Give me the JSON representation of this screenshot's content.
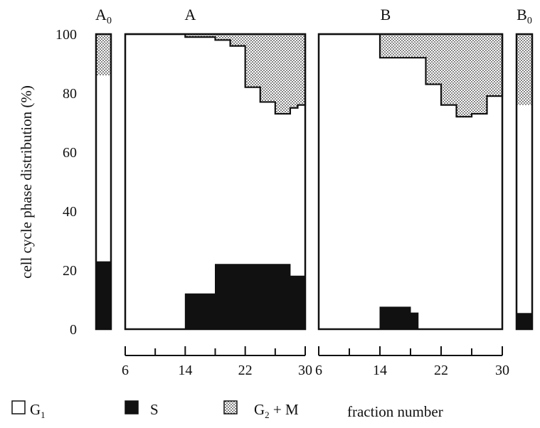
{
  "chart_data": {
    "type": "area",
    "ylabel": "cell cycle phase distribution (%)",
    "xlabel": "fraction number",
    "ylim": [
      0,
      100
    ],
    "yticks": [
      "100",
      "80",
      "60",
      "40",
      "20",
      "0"
    ],
    "phases": [
      {
        "key": "G1",
        "base": "G",
        "sub": "1",
        "rest": "",
        "fill": "white"
      },
      {
        "key": "S",
        "base": "S",
        "sub": "",
        "rest": "",
        "fill": "black"
      },
      {
        "key": "G2M",
        "base": "G",
        "sub": "2",
        "rest": " + M",
        "fill": "dotted"
      }
    ],
    "controls": [
      {
        "label": "A",
        "sub": "0",
        "S": 23,
        "G1": 63,
        "G2M": 14
      },
      {
        "label": "B",
        "sub": "0",
        "S": 5.5,
        "G1": 70.5,
        "G2M": 24
      }
    ],
    "panels": [
      {
        "label": "A",
        "xticks": [
          "6",
          "14",
          "22",
          "30"
        ],
        "x_range": [
          6,
          30
        ],
        "S": {
          "x": [
            6,
            14,
            18,
            26,
            28,
            30
          ],
          "values": [
            0,
            12,
            22,
            22,
            18,
            18
          ]
        },
        "G2M": {
          "x": [
            6,
            14,
            18,
            20,
            22,
            24,
            26,
            28,
            29,
            30
          ],
          "values": [
            0,
            1,
            2,
            4,
            18,
            23,
            27,
            25,
            24,
            24
          ]
        }
      },
      {
        "label": "B",
        "xticks": [
          "6",
          "14",
          "22",
          "30"
        ],
        "x_range": [
          6,
          30
        ],
        "S": {
          "x": [
            6,
            14,
            18,
            19,
            30
          ],
          "values": [
            0,
            7.5,
            5.5,
            0,
            0
          ]
        },
        "G2M": {
          "x": [
            6,
            14,
            18,
            20,
            22,
            24,
            26,
            28,
            30
          ],
          "values": [
            0,
            8,
            8,
            17,
            24,
            28,
            27,
            21,
            21
          ]
        }
      }
    ]
  }
}
